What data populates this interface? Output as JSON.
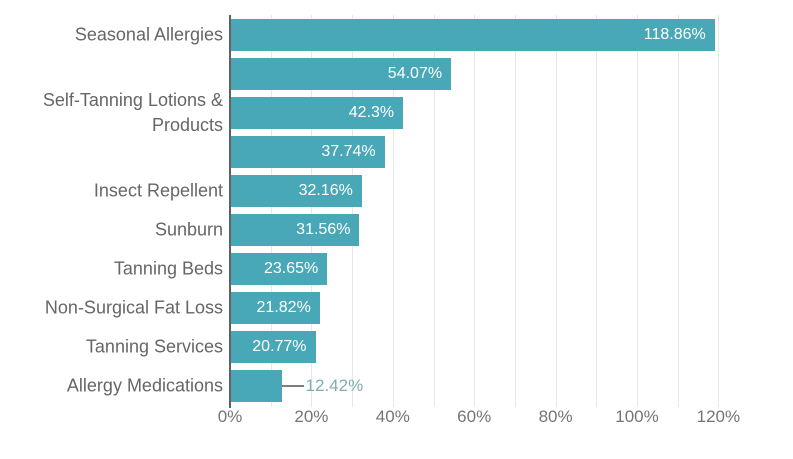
{
  "chart_data": {
    "type": "bar",
    "orientation": "horizontal",
    "title": "",
    "xlabel": "",
    "ylabel": "",
    "xlim": [
      0,
      120
    ],
    "x_tick_step": 20,
    "x_tick_labels": [
      "0%",
      "20%",
      "40%",
      "60%",
      "80%",
      "100%",
      "120%"
    ],
    "grid": true,
    "grid_step": 10,
    "legend": false,
    "categories": [
      "Seasonal Allergies",
      "",
      "Self-Tanning Lotions & Products",
      "",
      "Insect Repellent",
      "Sunburn",
      "Tanning Beds",
      "Non-Surgical Fat Loss",
      "Tanning Services",
      "Allergy Medications"
    ],
    "values": [
      118.86,
      54.07,
      42.3,
      37.74,
      32.16,
      31.56,
      23.65,
      21.82,
      20.77,
      12.42
    ],
    "value_labels": [
      "118.86%",
      "54.07%",
      "42.3%",
      "37.74%",
      "32.16%",
      "31.56%",
      "23.65%",
      "21.82%",
      "20.77%",
      "12.42%"
    ],
    "value_label_positions": [
      "inside",
      "inside",
      "inside",
      "inside",
      "inside",
      "inside",
      "inside",
      "inside",
      "inside",
      "outside"
    ]
  },
  "style": {
    "bar_color": "#49A8B7",
    "category_label_color": "#666666",
    "axis_label_color": "#757575",
    "gridline_color": "#e8e8e8",
    "axis_line_color": "#616161",
    "value_label_inside_color": "#ffffff",
    "value_label_outside_color": "#7FADB3",
    "leader_line_color": "#7d7d7d",
    "background_color": "#ffffff"
  }
}
